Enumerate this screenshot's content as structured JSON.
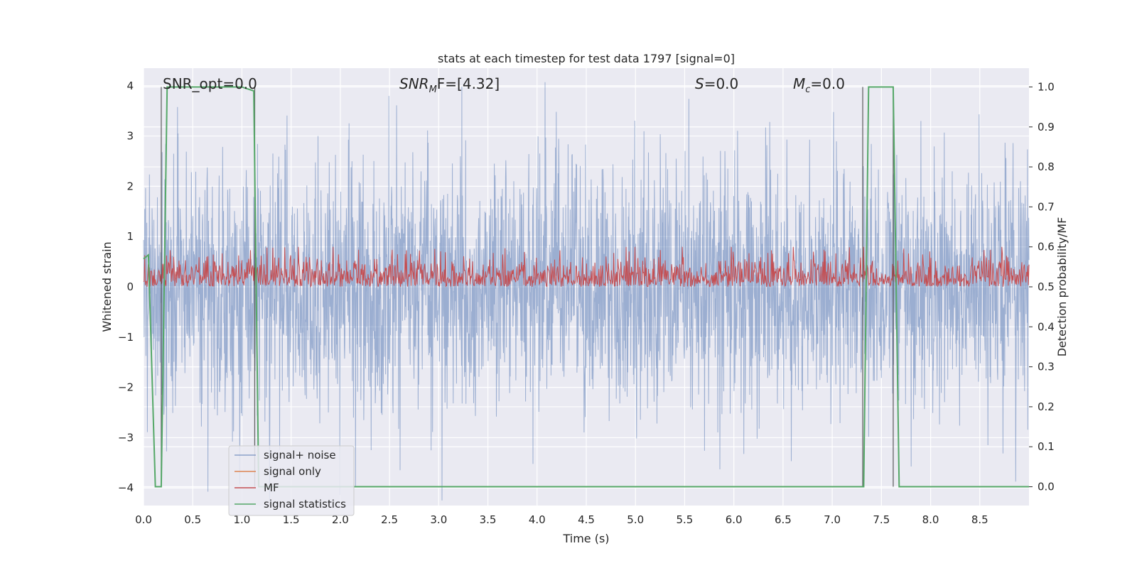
{
  "chart_data": {
    "type": "line",
    "title": "stats at each timestep for test data 1797 [signal=0]",
    "xlabel": "Time (s)",
    "ylabel": "Whitened strain",
    "ylabel_right": "Detection probability/MF",
    "xlim": [
      0,
      9
    ],
    "ylim": [
      -4.35,
      4.35
    ],
    "ylim_right": [
      -0.047,
      1.047
    ],
    "x_ticks": [
      "0.0",
      "0.5",
      "1.0",
      "1.5",
      "2.0",
      "2.5",
      "3.0",
      "3.5",
      "4.0",
      "4.5",
      "5.0",
      "5.5",
      "6.0",
      "6.5",
      "7.0",
      "7.5",
      "8.0",
      "8.5"
    ],
    "y_ticks": [
      "4",
      "3",
      "2",
      "1",
      "0",
      "−1",
      "−2",
      "−3",
      "−4"
    ],
    "y_ticks_right": [
      "1.0",
      "0.9",
      "0.8",
      "0.7",
      "0.6",
      "0.5",
      "0.4",
      "0.3",
      "0.2",
      "0.1",
      "0.0"
    ],
    "grid": true,
    "legend_position": "lower-left",
    "annotations": {
      "snr_opt": "SNR_opt=0.0",
      "snr_mf_main": "SNR",
      "snr_mf_sub": "M",
      "snr_mf_rest": "F=[4.32]",
      "s_main": "S",
      "s_rest": "=0.0",
      "mc_main": "M",
      "mc_sub": "c",
      "mc_rest": "=0.0"
    },
    "series": [
      {
        "name": "signal+ noise",
        "color": "#4c72b0",
        "noise_amplitude": 1.2,
        "axis": "left"
      },
      {
        "name": "signal only",
        "color": "#dd8452",
        "values": "zero",
        "axis": "left"
      },
      {
        "name": "MF",
        "color": "#c44e52",
        "baseline": 0.5,
        "max": 0.6,
        "axis": "right"
      },
      {
        "name": "signal statistics",
        "color": "#55a868",
        "axis": "right",
        "x": [
          0.0,
          0.05,
          0.12,
          0.18,
          0.24,
          1.0,
          1.12,
          1.17,
          7.32,
          7.37,
          7.62,
          7.68,
          9.0
        ],
        "y": [
          0.57,
          0.58,
          0.0,
          0.0,
          1.0,
          1.0,
          0.99,
          0.0,
          0.0,
          1.0,
          1.0,
          0.0,
          0.0
        ]
      }
    ],
    "vertical_lines_x": [
      0.18,
      1.13,
      7.31,
      7.62
    ]
  }
}
